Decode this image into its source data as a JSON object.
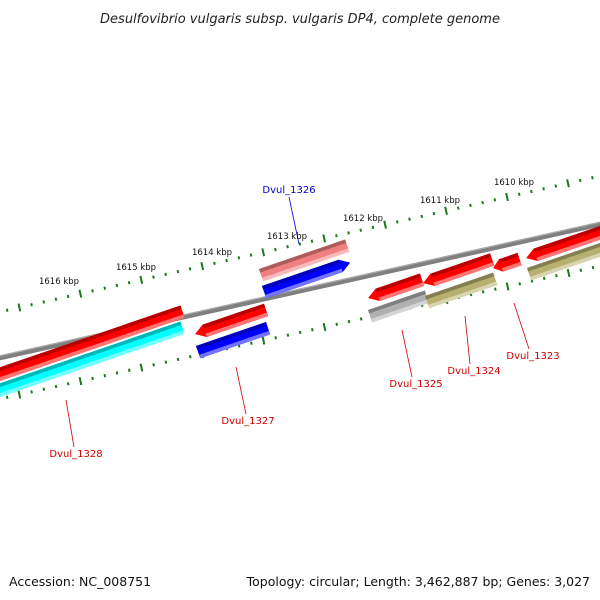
{
  "title": "Desulfovibrio vulgaris subsp. vulgaris DP4, complete genome",
  "footer": {
    "accession": "Accession: NC_008751",
    "summary": "Topology: circular; Length: 3,462,887 bp; Genes: 3,027"
  },
  "colors": {
    "gene_red": "#ff0000",
    "gene_pink": "#f08080",
    "gene_blue": "#0000ff",
    "gene_cyan": "#00ffff",
    "gene_olive": "#b8b070",
    "gene_gray": "#b0b0b0",
    "backbone": "#808080",
    "ticks": "#1a7a1a",
    "label_red": "#cc0000",
    "label_blue": "#0000cc"
  },
  "kbp_labels": [
    "1610 kbp",
    "1611 kbp",
    "1612 kbp",
    "1613 kbp",
    "1614 kbp",
    "1615 kbp",
    "1616 kbp"
  ],
  "genes": [
    {
      "label": "Dvul_1323"
    },
    {
      "label": "Dvul_1324"
    },
    {
      "label": "Dvul_1325"
    },
    {
      "label": "Dvul_1326"
    },
    {
      "label": "Dvul_1327"
    },
    {
      "label": "Dvul_1328"
    }
  ]
}
